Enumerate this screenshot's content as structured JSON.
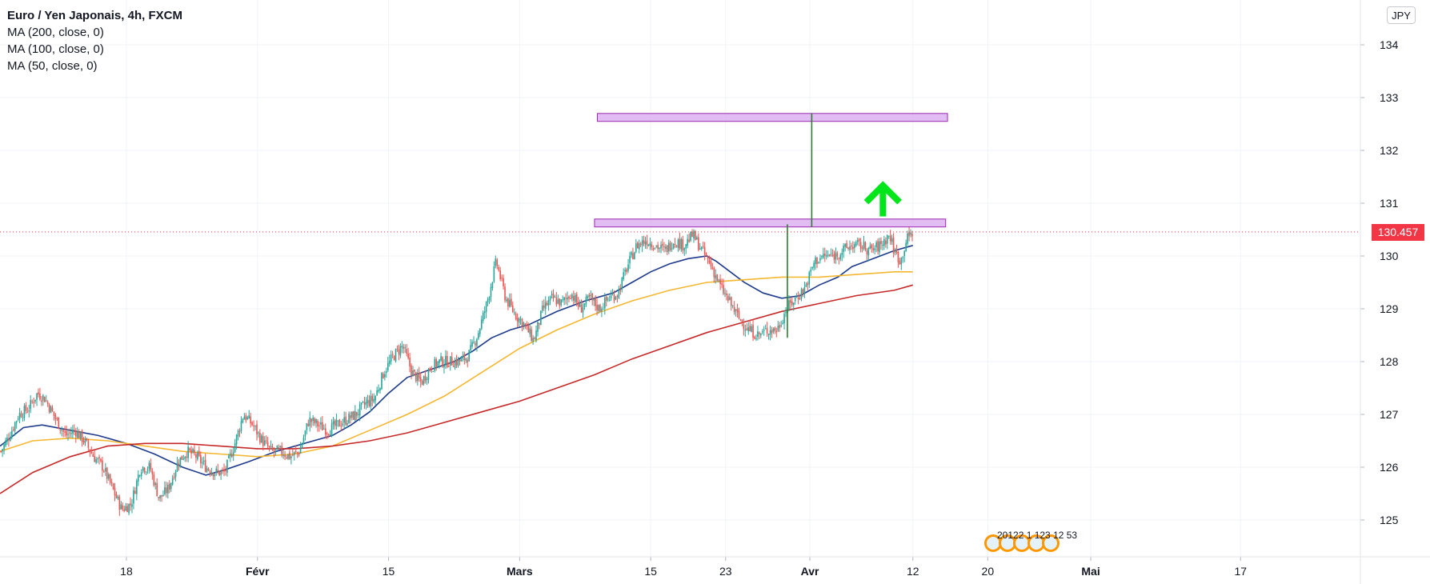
{
  "legend": {
    "title": "Euro / Yen Japonais, 4h, FXCM",
    "ma1": "MA (200, close, 0)",
    "ma2": "MA (100, close, 0)",
    "ma3": "MA (50, close, 0)"
  },
  "currency_button": "JPY",
  "price_tag": "130.457",
  "events_label": "20122  1 123  12  53",
  "colors": {
    "up": "#26a69a",
    "down": "#ef5350",
    "ma200": "#c62828",
    "ma100": "#f5b731",
    "ma50": "#1e3a8a",
    "zone": "#d8a7f0",
    "zone_border": "#9c27b0",
    "target_line": "#2e7d32",
    "arrow": "#00e61a",
    "price_line": "#f23645"
  },
  "chart_data": {
    "type": "candlestick",
    "symbol": "Euro / Yen Japonais",
    "interval": "4h",
    "exchange": "FXCM",
    "ylim": [
      124.3,
      134.8
    ],
    "y_ticks": [
      125,
      126,
      127,
      128,
      129,
      130,
      131,
      132,
      133,
      134
    ],
    "x_ticks": [
      {
        "label": "18",
        "day": 18
      },
      {
        "label": "Févr",
        "day": 32
      },
      {
        "label": "15",
        "day": 46
      },
      {
        "label": "Mars",
        "day": 60
      },
      {
        "label": "15",
        "day": 74
      },
      {
        "label": "23",
        "day": 82
      },
      {
        "label": "Avr",
        "day": 91
      },
      {
        "label": "12",
        "day": 102
      },
      {
        "label": "20",
        "day": 110
      },
      {
        "label": "Mai",
        "day": 121
      },
      {
        "label": "17",
        "day": 137
      }
    ],
    "xlim_day": [
      4.5,
      138.5
    ],
    "last_price": 130.457,
    "close_path": [
      [
        4.6,
        126.3
      ],
      [
        5.5,
        126.6
      ],
      [
        6.5,
        127.0
      ],
      [
        7.5,
        127.1
      ],
      [
        8.5,
        127.4
      ],
      [
        9.3,
        127.3
      ],
      [
        10.5,
        126.9
      ],
      [
        11.5,
        126.6
      ],
      [
        12.5,
        126.7
      ],
      [
        13.5,
        126.5
      ],
      [
        14.5,
        126.2
      ],
      [
        15.5,
        126.0
      ],
      [
        16.5,
        125.6
      ],
      [
        17.5,
        125.2
      ],
      [
        18.5,
        125.3
      ],
      [
        19.5,
        126.0
      ],
      [
        20.5,
        126.0
      ],
      [
        21.5,
        125.4
      ],
      [
        22.5,
        125.6
      ],
      [
        23.5,
        126.1
      ],
      [
        24.5,
        126.3
      ],
      [
        25.5,
        126.2
      ],
      [
        26.5,
        126.0
      ],
      [
        27.5,
        125.9
      ],
      [
        28.5,
        125.9
      ],
      [
        29.5,
        126.4
      ],
      [
        30.5,
        127.0
      ],
      [
        31.5,
        126.8
      ],
      [
        32.5,
        126.5
      ],
      [
        33.5,
        126.3
      ],
      [
        34.5,
        126.3
      ],
      [
        35.5,
        126.2
      ],
      [
        36.5,
        126.3
      ],
      [
        37.5,
        126.9
      ],
      [
        38.5,
        126.8
      ],
      [
        39.5,
        126.7
      ],
      [
        40.5,
        126.8
      ],
      [
        41.5,
        126.9
      ],
      [
        42.5,
        127.0
      ],
      [
        43.5,
        127.2
      ],
      [
        44.5,
        127.3
      ],
      [
        45.5,
        127.8
      ],
      [
        46.5,
        128.1
      ],
      [
        47.5,
        128.3
      ],
      [
        48.5,
        127.8
      ],
      [
        49.5,
        127.6
      ],
      [
        50.5,
        127.9
      ],
      [
        51.5,
        128.0
      ],
      [
        52.5,
        128.0
      ],
      [
        53.5,
        128.0
      ],
      [
        54.5,
        128.1
      ],
      [
        55.5,
        128.5
      ],
      [
        56.5,
        129.1
      ],
      [
        57.5,
        129.9
      ],
      [
        58.5,
        129.2
      ],
      [
        59.5,
        128.9
      ],
      [
        60.5,
        128.7
      ],
      [
        61.5,
        128.4
      ],
      [
        62.5,
        129.0
      ],
      [
        63.5,
        129.2
      ],
      [
        64.5,
        129.1
      ],
      [
        65.5,
        129.3
      ],
      [
        66.5,
        129.0
      ],
      [
        67.5,
        129.2
      ],
      [
        68.5,
        129.0
      ],
      [
        69.5,
        129.2
      ],
      [
        70.5,
        129.3
      ],
      [
        71.5,
        129.8
      ],
      [
        72.5,
        130.2
      ],
      [
        73.5,
        130.3
      ],
      [
        74.5,
        130.2
      ],
      [
        75.5,
        130.1
      ],
      [
        76.5,
        130.3
      ],
      [
        77.5,
        130.2
      ],
      [
        78.5,
        130.4
      ],
      [
        79.5,
        130.1
      ],
      [
        80.5,
        129.8
      ],
      [
        81.5,
        129.4
      ],
      [
        82.5,
        129.1
      ],
      [
        83.5,
        128.8
      ],
      [
        84.5,
        128.6
      ],
      [
        85.5,
        128.5
      ],
      [
        86.5,
        128.6
      ],
      [
        87.5,
        128.6
      ],
      [
        88.5,
        129.0
      ],
      [
        89.5,
        129.2
      ],
      [
        90.5,
        129.4
      ],
      [
        91.5,
        129.9
      ],
      [
        92.5,
        130.0
      ],
      [
        93.5,
        130.0
      ],
      [
        94.5,
        130.1
      ],
      [
        95.5,
        130.2
      ],
      [
        96.5,
        130.2
      ],
      [
        97.5,
        130.1
      ],
      [
        98.5,
        130.2
      ],
      [
        99.5,
        130.4
      ],
      [
        100.0,
        130.1
      ],
      [
        100.7,
        129.9
      ],
      [
        101.3,
        130.3
      ],
      [
        102.0,
        130.46
      ]
    ],
    "series": [
      {
        "name": "MA (50, close, 0)",
        "color": "#1e3a8a",
        "points": [
          [
            4.5,
            126.4
          ],
          [
            7.0,
            126.75
          ],
          [
            9.0,
            126.8
          ],
          [
            12.0,
            126.7
          ],
          [
            15.0,
            126.6
          ],
          [
            18.0,
            126.45
          ],
          [
            21.0,
            126.25
          ],
          [
            24.0,
            126.0
          ],
          [
            26.5,
            125.85
          ],
          [
            28.5,
            125.95
          ],
          [
            31.0,
            126.1
          ],
          [
            34.0,
            126.3
          ],
          [
            37.0,
            126.45
          ],
          [
            40.0,
            126.6
          ],
          [
            42.0,
            126.8
          ],
          [
            44.0,
            127.05
          ],
          [
            46.0,
            127.4
          ],
          [
            48.0,
            127.7
          ],
          [
            50.5,
            127.85
          ],
          [
            53.0,
            128.0
          ],
          [
            55.0,
            128.2
          ],
          [
            57.0,
            128.45
          ],
          [
            59.0,
            128.6
          ],
          [
            61.0,
            128.7
          ],
          [
            64.0,
            128.95
          ],
          [
            67.0,
            129.15
          ],
          [
            70.0,
            129.3
          ],
          [
            72.0,
            129.5
          ],
          [
            74.0,
            129.7
          ],
          [
            76.0,
            129.85
          ],
          [
            78.0,
            129.95
          ],
          [
            80.0,
            130.0
          ],
          [
            81.0,
            129.9
          ],
          [
            82.5,
            129.7
          ],
          [
            84.0,
            129.5
          ],
          [
            86.0,
            129.3
          ],
          [
            88.0,
            129.2
          ],
          [
            90.0,
            129.25
          ],
          [
            92.0,
            129.45
          ],
          [
            94.0,
            129.6
          ],
          [
            95.5,
            129.8
          ],
          [
            97.0,
            129.9
          ],
          [
            98.5,
            130.0
          ],
          [
            100.0,
            130.1
          ],
          [
            102.0,
            130.2
          ]
        ]
      },
      {
        "name": "MA (100, close, 0)",
        "color": "#f5b731",
        "points": [
          [
            4.5,
            126.3
          ],
          [
            8.0,
            126.5
          ],
          [
            12.0,
            126.55
          ],
          [
            16.0,
            126.5
          ],
          [
            20.0,
            126.4
          ],
          [
            24.0,
            126.3
          ],
          [
            28.0,
            126.25
          ],
          [
            32.0,
            126.2
          ],
          [
            36.0,
            126.25
          ],
          [
            40.0,
            126.4
          ],
          [
            44.0,
            126.7
          ],
          [
            48.0,
            127.0
          ],
          [
            52.0,
            127.35
          ],
          [
            56.0,
            127.8
          ],
          [
            60.0,
            128.25
          ],
          [
            64.0,
            128.6
          ],
          [
            68.0,
            128.9
          ],
          [
            72.0,
            129.15
          ],
          [
            76.0,
            129.35
          ],
          [
            80.0,
            129.5
          ],
          [
            84.0,
            129.55
          ],
          [
            88.0,
            129.6
          ],
          [
            92.0,
            129.6
          ],
          [
            96.0,
            129.65
          ],
          [
            100.0,
            129.7
          ],
          [
            102.0,
            129.7
          ]
        ]
      },
      {
        "name": "MA (200, close, 0)",
        "color": "#c62828",
        "points": [
          [
            4.5,
            125.5
          ],
          [
            8.0,
            125.9
          ],
          [
            12.0,
            126.2
          ],
          [
            16.0,
            126.4
          ],
          [
            20.0,
            126.45
          ],
          [
            24.0,
            126.45
          ],
          [
            28.0,
            126.4
          ],
          [
            32.0,
            126.35
          ],
          [
            36.0,
            126.35
          ],
          [
            40.0,
            126.4
          ],
          [
            44.0,
            126.5
          ],
          [
            48.0,
            126.65
          ],
          [
            52.0,
            126.85
          ],
          [
            56.0,
            127.05
          ],
          [
            60.0,
            127.25
          ],
          [
            64.0,
            127.5
          ],
          [
            68.0,
            127.75
          ],
          [
            72.0,
            128.05
          ],
          [
            76.0,
            128.3
          ],
          [
            80.0,
            128.55
          ],
          [
            84.0,
            128.75
          ],
          [
            88.0,
            128.95
          ],
          [
            92.0,
            129.1
          ],
          [
            96.0,
            129.25
          ],
          [
            100.0,
            129.35
          ],
          [
            102.0,
            129.45
          ]
        ]
      }
    ],
    "annotations": {
      "upper_zone": {
        "day_start": 68.3,
        "day_end": 105.7,
        "y_low": 132.55,
        "y_high": 132.7
      },
      "lower_zone": {
        "day_start": 68.0,
        "day_end": 105.5,
        "y_low": 130.55,
        "y_high": 130.7
      },
      "target_line": {
        "day": 91.2,
        "y_from": 130.55,
        "y_to": 132.7
      },
      "range_line": {
        "day": 88.6,
        "y_from": 128.45,
        "y_to": 130.6
      },
      "up_arrow": {
        "day": 98.8,
        "y_from": 130.75,
        "y_to": 131.35
      }
    }
  }
}
